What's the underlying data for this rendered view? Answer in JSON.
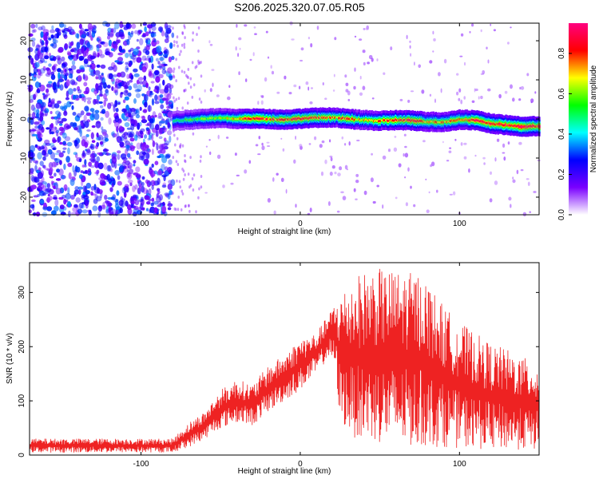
{
  "figure_title": "S206.2025.320.07.05.R05",
  "chart_data": [
    {
      "type": "heatmap",
      "xlabel": "Height of straight line (km)",
      "ylabel": "Frequency (Hz)",
      "xlim": [
        -170,
        150
      ],
      "ylim": [
        -24.5,
        24.5
      ],
      "x_ticks": [
        -100,
        0,
        100
      ],
      "y_ticks": [
        -20,
        -10,
        0,
        10,
        20
      ],
      "colorbar": {
        "label": "Normalized spectral amplitude",
        "range": [
          0,
          0.95
        ],
        "ticks": [
          "0.0",
          "0.2",
          "0.4",
          "0.6",
          "0.8"
        ],
        "colors": [
          "#ffffff",
          "#7a00ff",
          "#0000ff",
          "#00ffff",
          "#00ff00",
          "#ffff00",
          "#ff0000",
          "#ff0080"
        ]
      },
      "noise_region_x": [
        -170,
        -80
      ],
      "noise_level": 0.3,
      "sparse_noise_region_x": [
        -80,
        150
      ],
      "signal_start_x": -80,
      "signal_track": {
        "x": [
          -80,
          -70,
          -60,
          -50,
          -40,
          -30,
          -20,
          -10,
          0,
          10,
          20,
          30,
          40,
          50,
          60,
          70,
          80,
          90,
          100,
          110,
          120,
          130,
          140,
          150
        ],
        "frequency": [
          -0.5,
          -0.2,
          0.1,
          0.2,
          0.0,
          0.1,
          0.0,
          -0.2,
          0.1,
          0.3,
          0.4,
          0.0,
          -0.3,
          -0.5,
          -0.3,
          -0.4,
          -0.7,
          -0.8,
          -0.2,
          -0.3,
          -1.2,
          -1.6,
          -2.0,
          -1.8
        ],
        "amplitude": [
          0.45,
          0.55,
          0.6,
          0.65,
          0.7,
          0.85,
          0.8,
          0.8,
          0.85,
          0.8,
          0.75,
          0.8,
          0.7,
          0.75,
          0.8,
          0.85,
          0.7,
          0.75,
          0.8,
          0.85,
          0.85,
          0.85,
          0.9,
          0.85
        ]
      }
    },
    {
      "type": "line",
      "xlabel": "Height of straight line (km)",
      "ylabel": "SNR (10 * v/v)",
      "xlim": [
        -170,
        150
      ],
      "ylim": [
        0,
        355
      ],
      "x_ticks": [
        -100,
        0,
        100
      ],
      "y_ticks": [
        0,
        100,
        200,
        300
      ],
      "series": [
        {
          "color": "#ee2222",
          "upper_envelope": {
            "x": [
              -170,
              -80,
              -70,
              -60,
              -50,
              -40,
              -30,
              -20,
              -10,
              0,
              10,
              18,
              25,
              35,
              45,
              60,
              75,
              80,
              90,
              100,
              110,
              120,
              130,
              140,
              150
            ],
            "y": [
              30,
              30,
              60,
              80,
              120,
              140,
              130,
              165,
              185,
              215,
              225,
              260,
              300,
              330,
              345,
              340,
              335,
              320,
              275,
              245,
              225,
              205,
              195,
              180,
              170
            ]
          },
          "lower_envelope": {
            "x": [
              -170,
              -80,
              -70,
              -60,
              -50,
              -40,
              -30,
              -20,
              -10,
              0,
              10,
              18,
              22,
              25,
              35,
              60,
              90,
              120,
              150
            ],
            "y": [
              5,
              5,
              15,
              30,
              50,
              60,
              55,
              80,
              100,
              120,
              150,
              180,
              160,
              60,
              30,
              15,
              15,
              10,
              10
            ]
          }
        }
      ]
    }
  ]
}
